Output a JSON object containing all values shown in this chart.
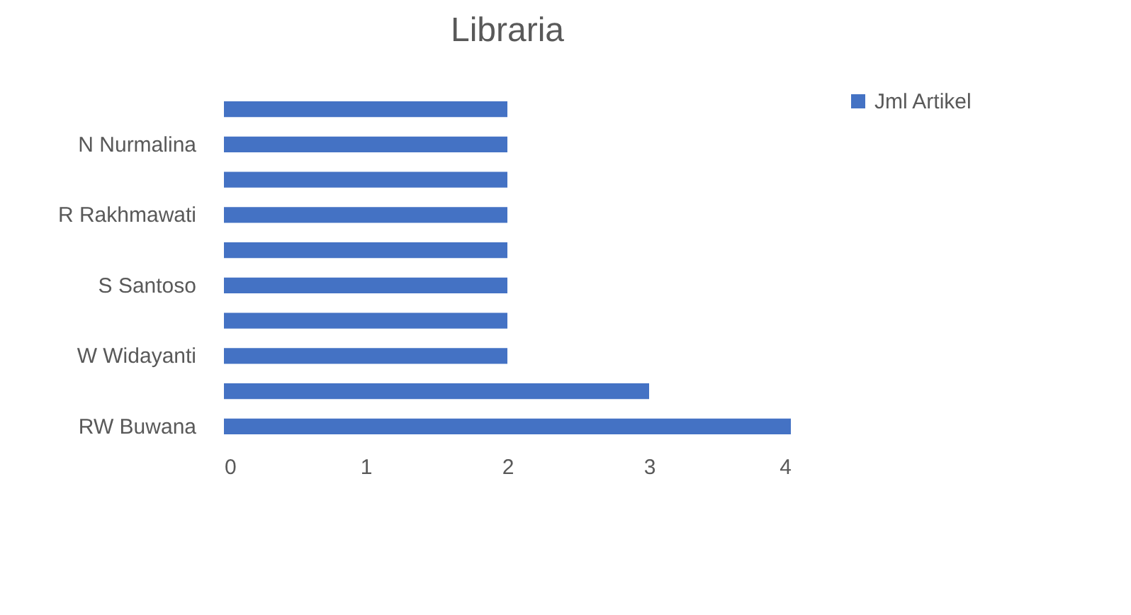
{
  "chart_data": {
    "type": "bar",
    "orientation": "horizontal",
    "title": "Libraria",
    "categories": [
      null,
      "N Nurmalina",
      null,
      "R Rakhmawati",
      null,
      "S Santoso",
      null,
      "W Widayanti",
      null,
      "RW Buwana"
    ],
    "series": [
      {
        "name": "Jml Artikel",
        "color": "#4472c4",
        "values": [
          2,
          2,
          2,
          2,
          2,
          2,
          2,
          2,
          3,
          4
        ]
      }
    ],
    "xlim": [
      0,
      4
    ],
    "xticks": [
      0,
      1,
      2,
      3,
      4
    ],
    "grid": false,
    "legend": "right"
  }
}
